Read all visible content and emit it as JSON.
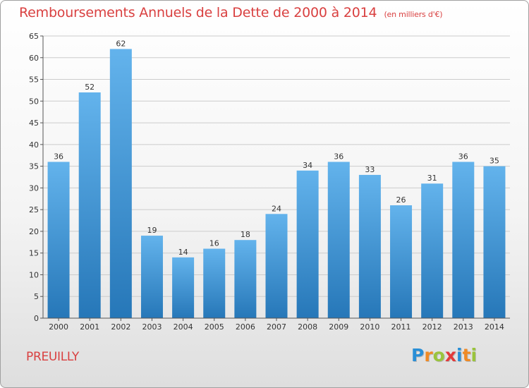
{
  "header": {
    "title": "Remboursements Annuels de la Dette de 2000 à 2014",
    "unit": "(en milliers d'€)"
  },
  "footer": {
    "place": "PREUILLY",
    "logo": {
      "letters": [
        "P",
        "r",
        "o",
        "x",
        "i",
        "t",
        "i"
      ],
      "colors": [
        "#2a8fd6",
        "#f08a24",
        "#9ac43c",
        "#e23a3a",
        "#2a8fd6",
        "#f08a24",
        "#9ac43c"
      ]
    }
  },
  "colors": {
    "title": "#d94040",
    "bar_light": "#63b3ec",
    "bar_dark": "#2677b8",
    "gridline": "#cccccc"
  },
  "chart_data": {
    "type": "bar",
    "title": "Remboursements Annuels de la Dette de 2000 à 2014",
    "subtitle": "(en milliers d'€)",
    "xlabel": "",
    "ylabel": "",
    "categories": [
      "2000",
      "2001",
      "2002",
      "2003",
      "2004",
      "2005",
      "2006",
      "2007",
      "2008",
      "2009",
      "2010",
      "2011",
      "2012",
      "2013",
      "2014"
    ],
    "values": [
      36,
      52,
      62,
      19,
      14,
      16,
      18,
      24,
      34,
      36,
      33,
      26,
      31,
      36,
      35
    ],
    "ylim": [
      0,
      65
    ],
    "yticks": [
      0,
      5,
      10,
      15,
      20,
      25,
      30,
      35,
      40,
      45,
      50,
      55,
      60,
      65
    ],
    "grid": true,
    "legend": "none",
    "data_labels": true
  }
}
